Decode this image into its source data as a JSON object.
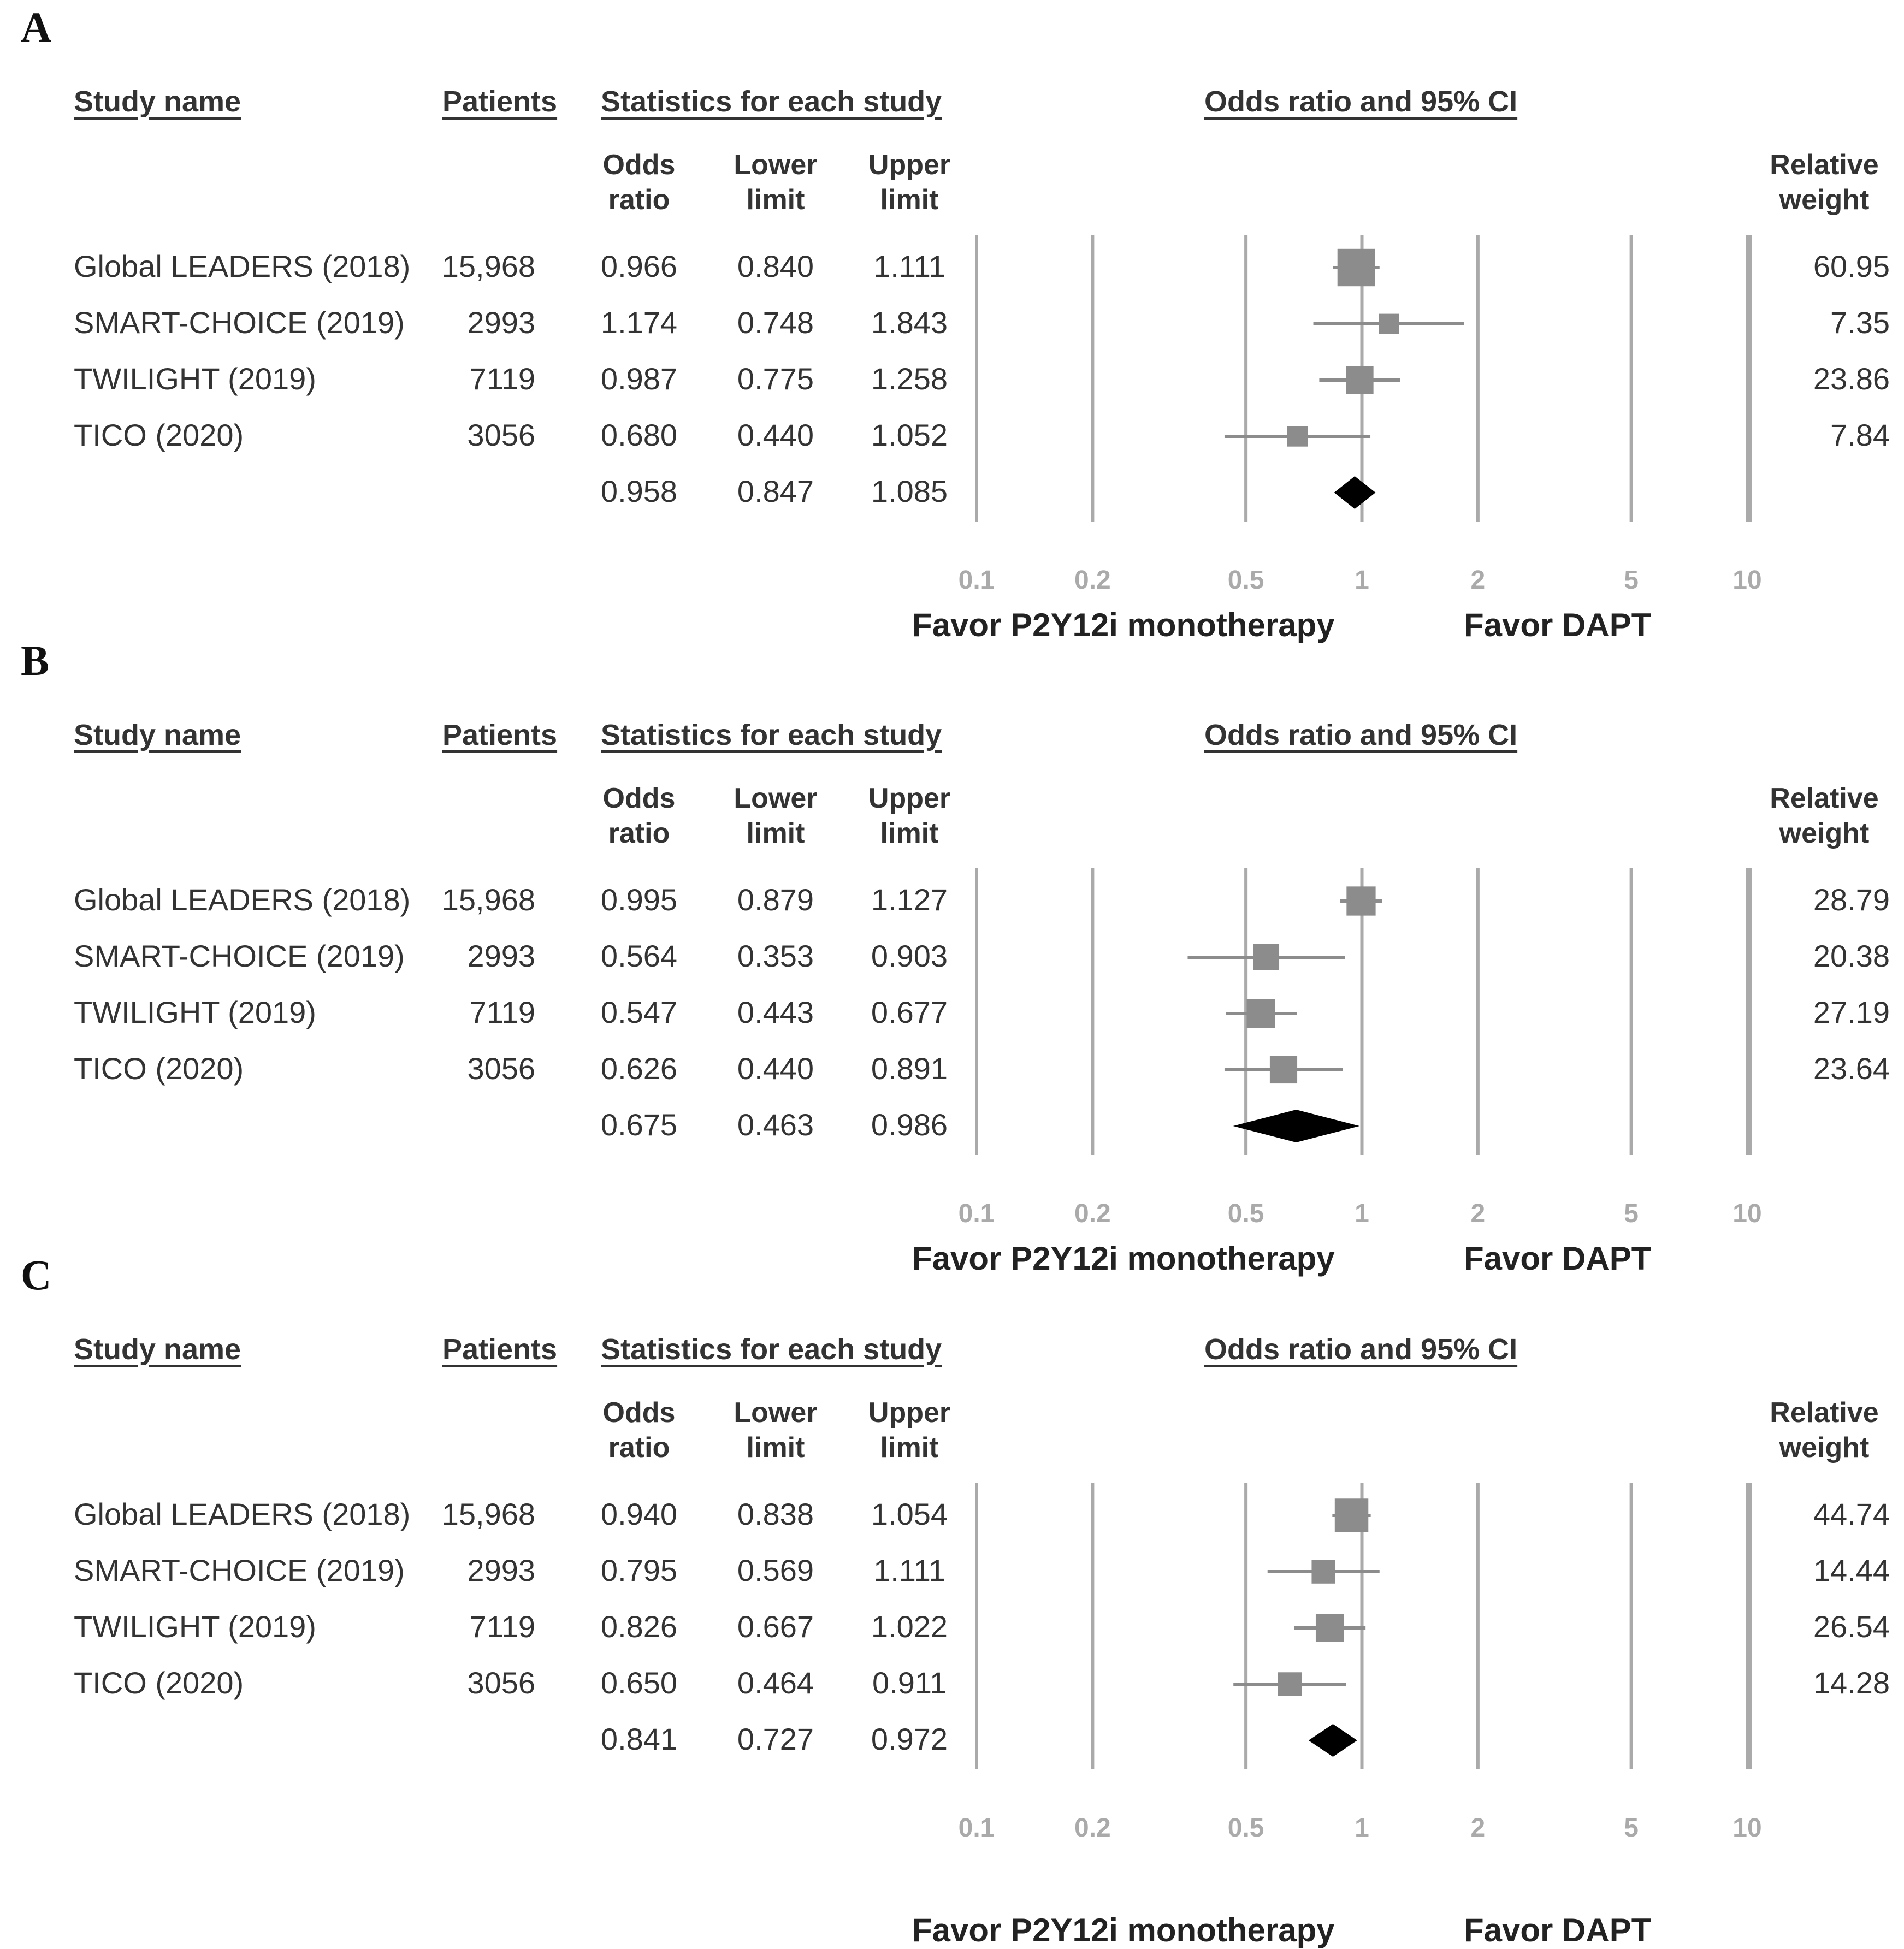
{
  "headers": {
    "study_name": "Study name",
    "patients": "Patients",
    "statistics": "Statistics for each study",
    "or_ci": "Odds ratio and 95% CI",
    "odds_ratio": [
      "Odds",
      "ratio"
    ],
    "lower_limit": [
      "Lower",
      "limit"
    ],
    "upper_limit": [
      "Upper",
      "limit"
    ],
    "relative_weight": [
      "Relative",
      "weight"
    ]
  },
  "axis_ticks": [
    "0.1",
    "0.2",
    "0.5",
    "1",
    "2",
    "5",
    "10"
  ],
  "favor_left": "Favor P2Y12i monotherapy",
  "favor_right": "Favor DAPT",
  "colors": {
    "study_marker": "#8c8c8c",
    "summary_diamond": "#000000",
    "gridline": "#aaaaaa"
  },
  "chart_data": [
    {
      "type": "forest",
      "panel": "A",
      "xscale": "log",
      "xlim": [
        0.1,
        10
      ],
      "rows": [
        {
          "study": "Global LEADERS (2018)",
          "patients": "15,968",
          "or": "0.966",
          "lower": "0.840",
          "upper": "1.111",
          "weight": "60.95"
        },
        {
          "study": "SMART-CHOICE (2019)",
          "patients": "2993",
          "or": "1.174",
          "lower": "0.748",
          "upper": "1.843",
          "weight": "7.35"
        },
        {
          "study": "TWILIGHT (2019)",
          "patients": "7119",
          "or": "0.987",
          "lower": "0.775",
          "upper": "1.258",
          "weight": "23.86"
        },
        {
          "study": "TICO (2020)",
          "patients": "3056",
          "or": "0.680",
          "lower": "0.440",
          "upper": "1.052",
          "weight": "7.84"
        }
      ],
      "summary": {
        "or": "0.958",
        "lower": "0.847",
        "upper": "1.085"
      }
    },
    {
      "type": "forest",
      "panel": "B",
      "xscale": "log",
      "xlim": [
        0.1,
        10
      ],
      "rows": [
        {
          "study": "Global LEADERS (2018)",
          "patients": "15,968",
          "or": "0.995",
          "lower": "0.879",
          "upper": "1.127",
          "weight": "28.79"
        },
        {
          "study": "SMART-CHOICE (2019)",
          "patients": "2993",
          "or": "0.564",
          "lower": "0.353",
          "upper": "0.903",
          "weight": "20.38"
        },
        {
          "study": "TWILIGHT (2019)",
          "patients": "7119",
          "or": "0.547",
          "lower": "0.443",
          "upper": "0.677",
          "weight": "27.19"
        },
        {
          "study": "TICO (2020)",
          "patients": "3056",
          "or": "0.626",
          "lower": "0.440",
          "upper": "0.891",
          "weight": "23.64"
        }
      ],
      "summary": {
        "or": "0.675",
        "lower": "0.463",
        "upper": "0.986"
      }
    },
    {
      "type": "forest",
      "panel": "C",
      "xscale": "log",
      "xlim": [
        0.1,
        10
      ],
      "rows": [
        {
          "study": "Global LEADERS (2018)",
          "patients": "15,968",
          "or": "0.940",
          "lower": "0.838",
          "upper": "1.054",
          "weight": "44.74"
        },
        {
          "study": "SMART-CHOICE (2019)",
          "patients": "2993",
          "or": "0.795",
          "lower": "0.569",
          "upper": "1.111",
          "weight": "14.44"
        },
        {
          "study": "TWILIGHT (2019)",
          "patients": "7119",
          "or": "0.826",
          "lower": "0.667",
          "upper": "1.022",
          "weight": "26.54"
        },
        {
          "study": "TICO (2020)",
          "patients": "3056",
          "or": "0.650",
          "lower": "0.464",
          "upper": "0.911",
          "weight": "14.28"
        }
      ],
      "summary": {
        "or": "0.841",
        "lower": "0.727",
        "upper": "0.972"
      }
    }
  ]
}
